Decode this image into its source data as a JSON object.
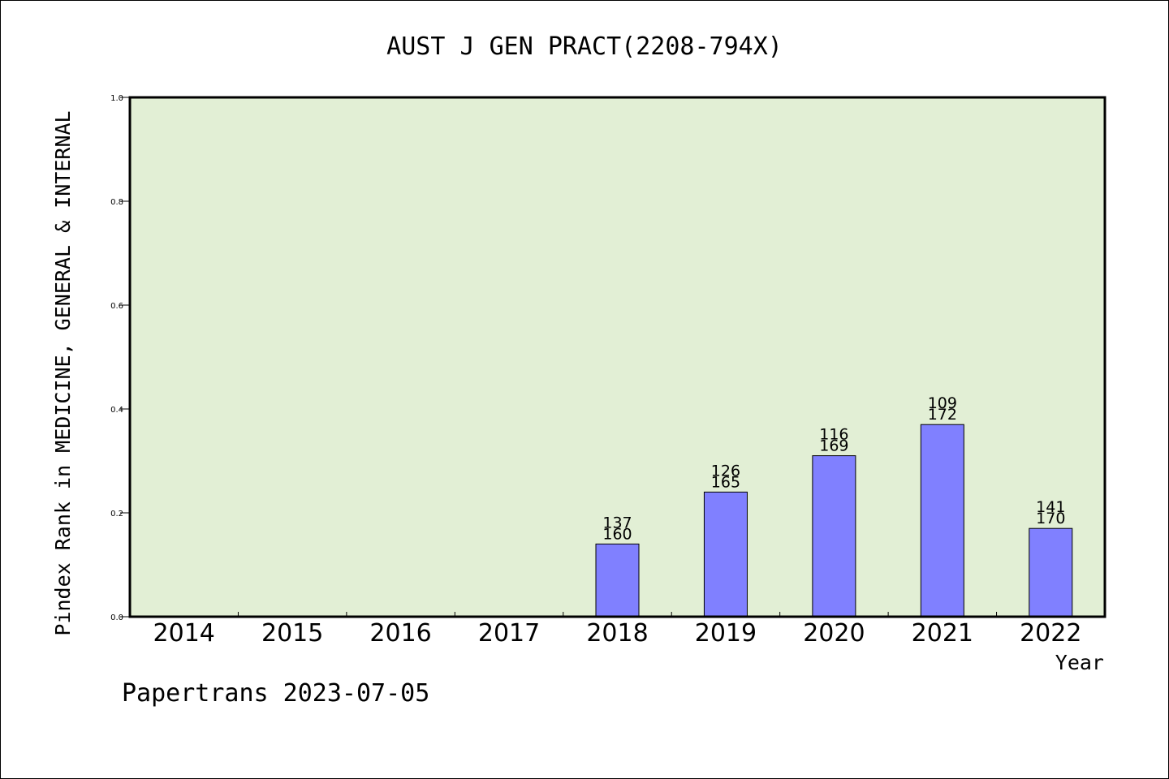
{
  "chart_data": {
    "type": "bar",
    "title": "AUST J GEN PRACT(2208-794X)",
    "xlabel": "Year",
    "ylabel": "Pindex Rank in MEDICINE, GENERAL & INTERNAL",
    "ylim": [
      0,
      1.0
    ],
    "yticks": [
      "0.0",
      "0.2",
      "0.4",
      "0.6",
      "0.8",
      "1.0"
    ],
    "categories": [
      "2014",
      "2015",
      "2016",
      "2017",
      "2018",
      "2019",
      "2020",
      "2021",
      "2022"
    ],
    "values": [
      null,
      null,
      null,
      null,
      0.14,
      0.24,
      0.31,
      0.37,
      0.17
    ],
    "rank_labels": [
      "",
      "",
      "",
      "",
      "137",
      "126",
      "116",
      "109",
      "141"
    ],
    "total_labels": [
      "",
      "",
      "",
      "",
      "160",
      "165",
      "169",
      "172",
      "170"
    ],
    "grid": false,
    "plot_background": "#e2efd5",
    "bar_color": "#8080ff"
  },
  "footer": "Papertrans 2023-07-05"
}
